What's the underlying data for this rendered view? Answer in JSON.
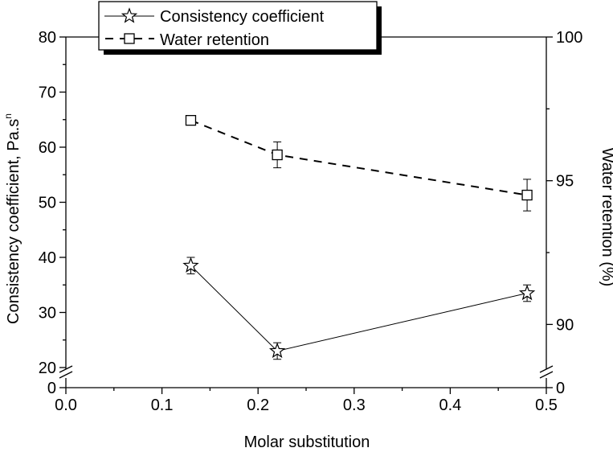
{
  "chart_data": {
    "type": "line",
    "xlabel": "Molar substitution",
    "x_ticks": [
      "0.0",
      "0.1",
      "0.2",
      "0.3",
      "0.4",
      "0.5"
    ],
    "xlim": [
      0.0,
      0.5
    ],
    "ylabel_left": "Consistency coefficient, Pa.s",
    "ylabel_left_superscript": "n",
    "ylabel_right": "Water retention (%)",
    "y_left_ticks": [
      "0",
      "20",
      "30",
      "40",
      "50",
      "60",
      "70",
      "80"
    ],
    "y_left_broken_axis": {
      "lower": [
        0,
        2
      ],
      "upper": [
        20,
        80
      ]
    },
    "y_right_ticks": [
      "0",
      "90",
      "95",
      "100"
    ],
    "y_right_broken_axis": {
      "lower": [
        0,
        1
      ],
      "upper": [
        88.5,
        100
      ]
    },
    "legend_position": "top-left",
    "series": [
      {
        "name": "Consistency coefficient",
        "axis": "left",
        "marker": "star",
        "line_style": "solid",
        "x": [
          0.13,
          0.22,
          0.48
        ],
        "values": [
          38.5,
          23.0,
          33.5
        ],
        "errors": [
          1.5,
          1.5,
          1.5
        ]
      },
      {
        "name": "Water retention",
        "axis": "right",
        "marker": "square",
        "line_style": "dashed",
        "x": [
          0.13,
          0.22,
          0.48
        ],
        "values": [
          97.1,
          95.9,
          94.5
        ],
        "errors": [
          0.15,
          0.45,
          0.55
        ]
      }
    ]
  }
}
